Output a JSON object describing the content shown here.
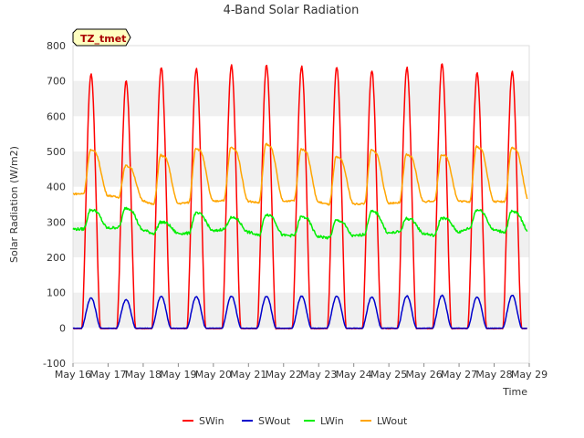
{
  "chart_data": {
    "type": "line",
    "title": "4-Band Solar Radiation",
    "xlabel": "Time",
    "ylabel": "Solar Radiation (W/m2)",
    "badge": "TZ_tmet",
    "ylim": [
      -100,
      800
    ],
    "xlim": [
      16,
      29
    ],
    "yticks": [
      -100,
      0,
      100,
      200,
      300,
      400,
      500,
      600,
      700,
      800
    ],
    "xticks": [
      16,
      17,
      18,
      19,
      20,
      21,
      22,
      23,
      24,
      25,
      26,
      27,
      28,
      29
    ],
    "xtick_labels": [
      "May 16",
      "May 17",
      "May 18",
      "May 19",
      "May 20",
      "May 21",
      "May 22",
      "May 23",
      "May 24",
      "May 25",
      "May 26",
      "May 27",
      "May 28",
      "May 29"
    ],
    "grid": "horizontal bands",
    "legend_position": "bottom",
    "series": [
      {
        "name": "SWin",
        "color": "#ff0000",
        "daily_peaks": [
          720,
          700,
          740,
          735,
          745,
          745,
          742,
          740,
          730,
          738,
          750,
          722,
          728
        ]
      },
      {
        "name": "SWout",
        "color": "#0000cc",
        "daily_peaks": [
          85,
          80,
          90,
          88,
          90,
          90,
          90,
          90,
          88,
          90,
          92,
          88,
          92
        ]
      },
      {
        "name": "LWin",
        "color": "#00ee00",
        "daily_peaks": [
          335,
          340,
          300,
          325,
          312,
          322,
          315,
          305,
          330,
          310,
          312,
          335,
          330
        ],
        "daily_lows": [
          280,
          285,
          268,
          268,
          280,
          262,
          262,
          255,
          265,
          272,
          262,
          282,
          272
        ]
      },
      {
        "name": "LWout",
        "color": "#ffa500",
        "daily_peaks": [
          505,
          460,
          490,
          510,
          512,
          522,
          508,
          485,
          505,
          492,
          492,
          515,
          512
        ],
        "daily_lows": [
          380,
          370,
          350,
          355,
          362,
          355,
          362,
          350,
          352,
          355,
          360,
          358,
          358
        ]
      }
    ]
  }
}
